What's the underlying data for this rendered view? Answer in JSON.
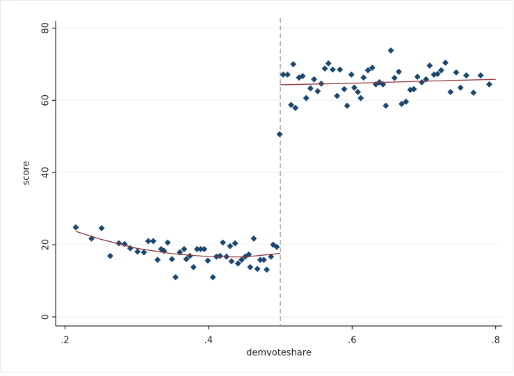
{
  "chart_data": {
    "type": "scatter",
    "x_label": "demvoteshare",
    "y_label": "score",
    "xlim": [
      0.187,
      0.809
    ],
    "xticks": [
      {
        "value": 0.2,
        "label": ".2"
      },
      {
        "value": 0.4,
        "label": ".4"
      },
      {
        "value": 0.6,
        "label": ".6"
      },
      {
        "value": 0.8,
        "label": ".8"
      }
    ],
    "ylim": [
      -2.5,
      82
    ],
    "yticks": [
      0,
      20,
      40,
      60,
      80
    ],
    "grid": true,
    "cutoff": 0.5,
    "points": {
      "color": "#1a476f",
      "x": [
        0.215,
        0.237,
        0.251,
        0.263,
        0.275,
        0.283,
        0.291,
        0.301,
        0.31,
        0.316,
        0.323,
        0.329,
        0.334,
        0.338,
        0.343,
        0.349,
        0.354,
        0.36,
        0.366,
        0.369,
        0.374,
        0.379,
        0.384,
        0.389,
        0.394,
        0.399,
        0.406,
        0.411,
        0.416,
        0.42,
        0.425,
        0.43,
        0.432,
        0.437,
        0.441,
        0.446,
        0.451,
        0.456,
        0.458,
        0.463,
        0.468,
        0.472,
        0.477,
        0.481,
        0.487,
        0.49,
        0.495,
        0.499,
        0.504,
        0.51,
        0.515,
        0.518,
        0.521,
        0.526,
        0.531,
        0.536,
        0.542,
        0.547,
        0.552,
        0.557,
        0.562,
        0.567,
        0.573,
        0.579,
        0.583,
        0.589,
        0.593,
        0.599,
        0.603,
        0.608,
        0.612,
        0.616,
        0.622,
        0.628,
        0.633,
        0.638,
        0.643,
        0.647,
        0.654,
        0.659,
        0.665,
        0.669,
        0.675,
        0.681,
        0.686,
        0.691,
        0.697,
        0.703,
        0.708,
        0.714,
        0.719,
        0.724,
        0.73,
        0.737,
        0.745,
        0.751,
        0.759,
        0.769,
        0.779,
        0.791
      ],
      "y": [
        24.8,
        21.7,
        24.6,
        16.9,
        20.4,
        20.2,
        19.0,
        18.1,
        17.9,
        21.0,
        21.0,
        15.8,
        18.8,
        18.3,
        20.6,
        16.0,
        11.0,
        17.9,
        18.8,
        16.0,
        16.9,
        13.8,
        18.8,
        18.8,
        18.8,
        15.6,
        11.0,
        16.7,
        16.9,
        20.6,
        16.7,
        19.6,
        15.4,
        20.4,
        14.8,
        15.8,
        16.7,
        17.3,
        13.8,
        21.7,
        13.3,
        15.8,
        15.8,
        13.1,
        16.7,
        20.0,
        19.4,
        50.6,
        67.1,
        67.1,
        58.7,
        70.0,
        57.9,
        66.3,
        66.7,
        60.6,
        63.3,
        65.8,
        62.5,
        64.6,
        68.8,
        70.2,
        68.5,
        61.2,
        68.5,
        63.1,
        58.5,
        67.1,
        63.5,
        62.3,
        60.6,
        66.3,
        68.3,
        69.0,
        64.4,
        65.0,
        64.4,
        58.5,
        73.8,
        66.2,
        67.9,
        59.0,
        59.6,
        62.9,
        63.1,
        66.5,
        65.0,
        65.8,
        69.6,
        67.1,
        67.3,
        68.3,
        70.4,
        62.3,
        67.7,
        63.5,
        66.9,
        62.1,
        66.9,
        64.4
      ]
    },
    "fits": [
      {
        "color": "#90353b",
        "x": [
          0.215,
          0.25,
          0.3,
          0.35,
          0.4,
          0.45,
          0.5
        ],
        "y": [
          23.7,
          21.5,
          19.0,
          17.5,
          16.7,
          16.6,
          17.6
        ]
      },
      {
        "color": "#90353b",
        "x": [
          0.5,
          0.6,
          0.7,
          0.8
        ],
        "y": [
          64.3,
          64.7,
          65.3,
          65.8
        ]
      }
    ]
  }
}
